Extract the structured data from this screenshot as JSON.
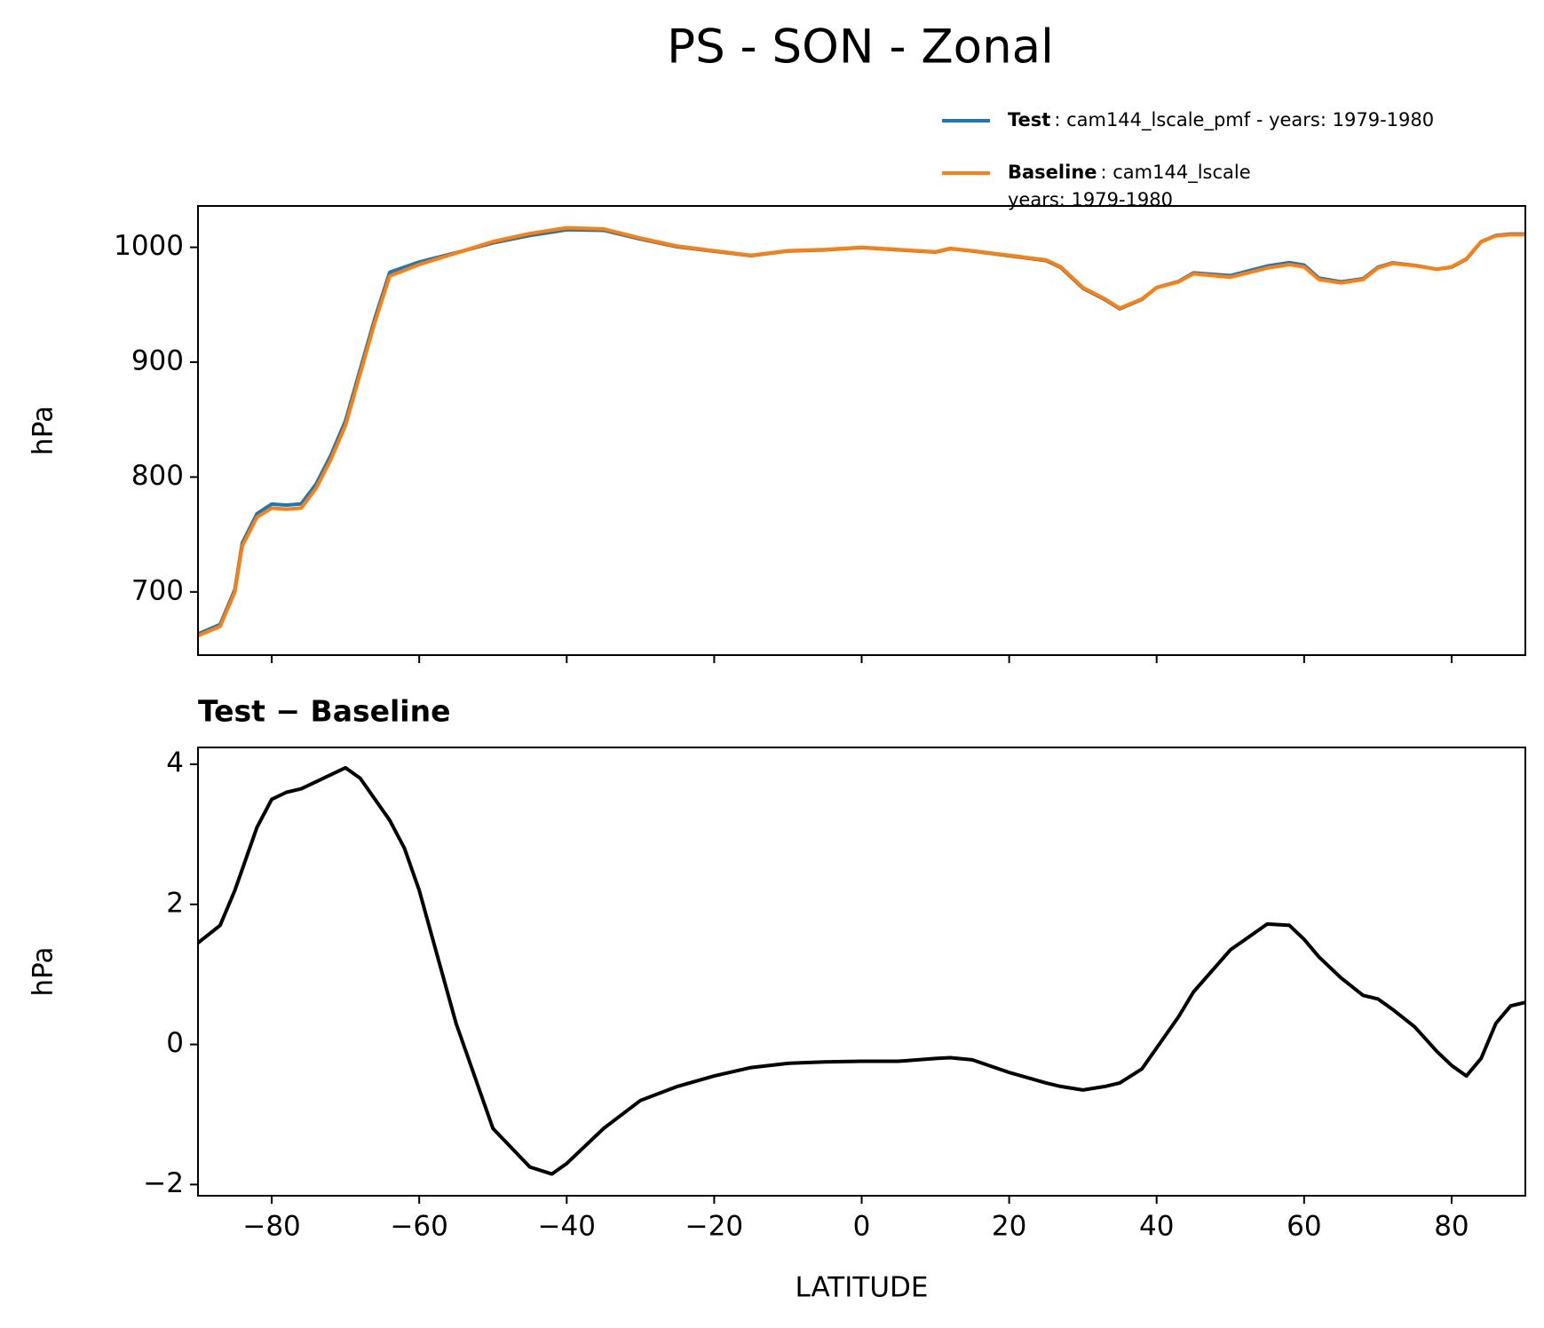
{
  "title": "PS - SON - Zonal",
  "chart_data": [
    {
      "type": "line",
      "ylabel": "hPa",
      "x": [
        -90,
        -87,
        -85,
        -84,
        -82,
        -80,
        -78,
        -76,
        -74,
        -72,
        -70,
        -68,
        -66,
        -64,
        -62,
        -60,
        -55,
        -50,
        -45,
        -42,
        -40,
        -35,
        -30,
        -25,
        -20,
        -15,
        -10,
        -5,
        0,
        5,
        10,
        12,
        15,
        20,
        25,
        27,
        30,
        33,
        35,
        38,
        40,
        43,
        45,
        50,
        55,
        58,
        60,
        62,
        65,
        68,
        70,
        72,
        75,
        78,
        80,
        82,
        84,
        86,
        88,
        90
      ],
      "series": [
        {
          "name": "Test",
          "detail": [
            ": cam144_lscale_pmf - years: 1979-1980"
          ],
          "color": "#1f77b4",
          "values": [
            663.45,
            671.7,
            702.2,
            742.5,
            768.1,
            776.5,
            775.6,
            776.65,
            793.75,
            818.85,
            848.95,
            893.8,
            938.5,
            978.2,
            982.8,
            987.2,
            995.3,
            1003.8,
            1010.25,
            1013.15,
            1015.3,
            1014.8,
            1007.2,
            1000.4,
            996.55,
            992.67,
            996.73,
            997.75,
            999.76,
            997.76,
            995.8,
            998.81,
            996.78,
            992.6,
            988.45,
            982.4,
            964.35,
            954.4,
            946.45,
            954.65,
            964.95,
            970.4,
            977.75,
            975.35,
            983.72,
            986.7,
            984.5,
            973.25,
            969.95,
            972.7,
            982.65,
            986.5,
            984.25,
            980.9,
            982.7,
            989.55,
            1004.8,
            1010.3,
            1011.55,
            1011.6
          ]
        },
        {
          "name": "Baseline",
          "detail": [
            ": cam144_lscale",
            "years: 1979-1980"
          ],
          "color": "#ff7f0e",
          "values": [
            662,
            670,
            700,
            740,
            765,
            773,
            772,
            773,
            790,
            815,
            845,
            890,
            935,
            975,
            980,
            985,
            995,
            1005,
            1012,
            1015,
            1017,
            1016,
            1008,
            1001,
            997,
            993,
            997,
            998,
            1000,
            998,
            996,
            999,
            997,
            993,
            989,
            983,
            965,
            955,
            947,
            955,
            965,
            970,
            977,
            974,
            982,
            985,
            983,
            972,
            969,
            972,
            982,
            986,
            984,
            981,
            983,
            990,
            1005,
            1010,
            1011,
            1011
          ]
        }
      ],
      "xlim": [
        -90,
        90
      ],
      "xticks": [
        -80,
        -60,
        -40,
        -20,
        0,
        20,
        40,
        60,
        80
      ],
      "xticklabels": false,
      "ylim": [
        645,
        1036
      ],
      "yticks": [
        700,
        800,
        900,
        1000
      ]
    },
    {
      "type": "line",
      "title": "Test − Baseline",
      "ylabel": "hPa",
      "xlabel": "LATITUDE",
      "x": [
        -90,
        -87,
        -85,
        -84,
        -82,
        -80,
        -78,
        -76,
        -74,
        -72,
        -70,
        -68,
        -66,
        -64,
        -62,
        -60,
        -55,
        -50,
        -45,
        -42,
        -40,
        -35,
        -30,
        -25,
        -20,
        -15,
        -10,
        -5,
        0,
        5,
        10,
        12,
        15,
        20,
        25,
        27,
        30,
        33,
        35,
        38,
        40,
        43,
        45,
        50,
        55,
        58,
        60,
        62,
        65,
        68,
        70,
        72,
        75,
        78,
        80,
        82,
        84,
        86,
        88,
        90
      ],
      "series": [
        {
          "color": "#000000",
          "values": [
            1.45,
            1.7,
            2.2,
            2.5,
            3.1,
            3.5,
            3.6,
            3.65,
            3.75,
            3.85,
            3.95,
            3.8,
            3.5,
            3.2,
            2.8,
            2.2,
            0.3,
            -1.2,
            -1.75,
            -1.85,
            -1.7,
            -1.2,
            -0.8,
            -0.6,
            -0.45,
            -0.33,
            -0.27,
            -0.25,
            -0.24,
            -0.24,
            -0.2,
            -0.19,
            -0.22,
            -0.4,
            -0.55,
            -0.6,
            -0.65,
            -0.6,
            -0.55,
            -0.35,
            -0.05,
            0.4,
            0.75,
            1.35,
            1.72,
            1.7,
            1.5,
            1.25,
            0.95,
            0.7,
            0.65,
            0.5,
            0.25,
            -0.1,
            -0.3,
            -0.45,
            -0.2,
            0.3,
            0.55,
            0.6
          ]
        }
      ],
      "xlim": [
        -90,
        90
      ],
      "xticks": [
        {
          "value": -80,
          "label": "−80"
        },
        {
          "value": -60,
          "label": "−60"
        },
        {
          "value": -40,
          "label": "−40"
        },
        {
          "value": -20,
          "label": "−20"
        },
        0,
        20,
        40,
        60,
        80
      ],
      "xticklabels": true,
      "ylim": [
        -2.16,
        4.24
      ],
      "yticks": [
        {
          "value": -2,
          "label": "−2"
        },
        0,
        2,
        4
      ]
    }
  ]
}
